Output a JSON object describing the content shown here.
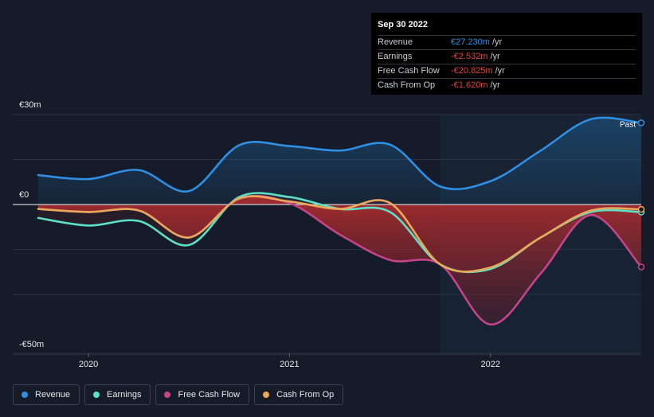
{
  "chart_data": {
    "type": "area",
    "y_unit": "€m",
    "ylim": [
      -50,
      30
    ],
    "x_ticks": [
      {
        "label": "2020",
        "x": 2020.0
      },
      {
        "label": "2021",
        "x": 2021.0
      },
      {
        "label": "2022",
        "x": 2022.0
      }
    ],
    "y_ticks": [
      {
        "label": "€30m",
        "value": 30
      },
      {
        "label": "€0",
        "value": 0
      },
      {
        "label": "-€50m",
        "value": -50
      }
    ],
    "past_start_x": 2021.75,
    "past_label": "Past",
    "series": [
      {
        "name": "Revenue",
        "color": "#2e8fe4",
        "points": [
          [
            2019.75,
            9.8
          ],
          [
            2020.0,
            8.5
          ],
          [
            2020.25,
            11.5
          ],
          [
            2020.5,
            4.5
          ],
          [
            2020.75,
            19.8
          ],
          [
            2021.0,
            19.5
          ],
          [
            2021.25,
            18.0
          ],
          [
            2021.5,
            20.0
          ],
          [
            2021.75,
            6.0
          ],
          [
            2022.0,
            7.8
          ],
          [
            2022.25,
            18.0
          ],
          [
            2022.5,
            28.5
          ],
          [
            2022.75,
            27.23
          ]
        ]
      },
      {
        "name": "Earnings",
        "color": "#5ce0c8",
        "points": [
          [
            2019.75,
            -4.5
          ],
          [
            2020.0,
            -7.0
          ],
          [
            2020.25,
            -5.5
          ],
          [
            2020.5,
            -13.5
          ],
          [
            2020.75,
            2.5
          ],
          [
            2021.0,
            2.5
          ],
          [
            2021.25,
            -1.5
          ],
          [
            2021.5,
            -2.5
          ],
          [
            2021.75,
            -20.0
          ],
          [
            2022.0,
            -21.5
          ],
          [
            2022.25,
            -11.0
          ],
          [
            2022.5,
            -2.5
          ],
          [
            2022.75,
            -2.532
          ]
        ]
      },
      {
        "name": "Free Cash Flow",
        "color": "#c4438a",
        "points": [
          [
            2019.75,
            -1.5
          ],
          [
            2020.0,
            -2.5
          ],
          [
            2020.25,
            -2.0
          ],
          [
            2020.5,
            -11.0
          ],
          [
            2020.75,
            2.0
          ],
          [
            2021.0,
            0.5
          ],
          [
            2021.25,
            -10.0
          ],
          [
            2021.5,
            -18.5
          ],
          [
            2021.75,
            -20.0
          ],
          [
            2022.0,
            -40.0
          ],
          [
            2022.25,
            -23.0
          ],
          [
            2022.5,
            -3.5
          ],
          [
            2022.75,
            -20.825
          ]
        ]
      },
      {
        "name": "Cash From Op",
        "color": "#e8a95a",
        "points": [
          [
            2019.75,
            -1.5
          ],
          [
            2020.0,
            -2.5
          ],
          [
            2020.25,
            -2.0
          ],
          [
            2020.5,
            -11.0
          ],
          [
            2020.75,
            2.0
          ],
          [
            2021.0,
            1.0
          ],
          [
            2021.25,
            -1.5
          ],
          [
            2021.5,
            0.5
          ],
          [
            2021.75,
            -20.0
          ],
          [
            2022.0,
            -21.0
          ],
          [
            2022.25,
            -11.0
          ],
          [
            2022.5,
            -2.0
          ],
          [
            2022.75,
            -1.62
          ]
        ]
      }
    ]
  },
  "tooltip": {
    "date": "Sep 30 2022",
    "rows": [
      {
        "label": "Revenue",
        "value": "€27.230m",
        "unit": "/yr",
        "color": "#2e8fe4"
      },
      {
        "label": "Earnings",
        "value": "-€2.532m",
        "unit": "/yr",
        "color": "#e0443e"
      },
      {
        "label": "Free Cash Flow",
        "value": "-€20.825m",
        "unit": "/yr",
        "color": "#e0443e"
      },
      {
        "label": "Cash From Op",
        "value": "-€1.620m",
        "unit": "/yr",
        "color": "#e0443e"
      }
    ]
  },
  "legend": [
    {
      "label": "Revenue",
      "color": "#2e8fe4"
    },
    {
      "label": "Earnings",
      "color": "#5ce0c8"
    },
    {
      "label": "Free Cash Flow",
      "color": "#c4438a"
    },
    {
      "label": "Cash From Op",
      "color": "#e8a95a"
    }
  ]
}
